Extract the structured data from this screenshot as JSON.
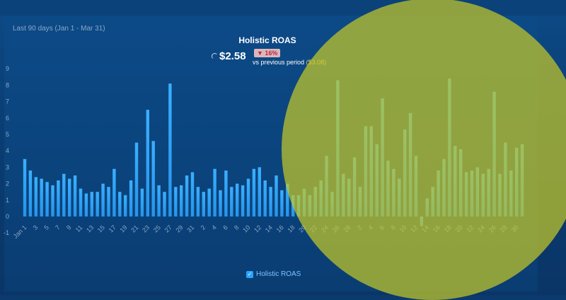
{
  "header": {
    "period": "Last 90 days (Jan 1 - Mar 31)",
    "title": "Holistic ROAS",
    "value": "$2.58",
    "change": "▼ 16%",
    "compare_text": "vs previous period",
    "previous_value": "($3.08)"
  },
  "legend": {
    "label": "Holistic ROAS",
    "checked": true
  },
  "colors": {
    "bar": "#2aa3ff",
    "negative_badge": "#c0263a",
    "previous": "#f2c94c",
    "highlight": "#c3c828"
  },
  "chart_data": {
    "type": "bar",
    "title": "Holistic ROAS",
    "ylim": [
      -1,
      9
    ],
    "yticks": [
      9,
      8,
      7,
      6,
      5,
      4,
      3,
      2,
      1,
      0,
      -1
    ],
    "grid": false,
    "legend": "bottom",
    "xtick_labels": [
      "Jan 1",
      "3",
      "5",
      "7",
      "9",
      "11",
      "13",
      "15",
      "17",
      "19",
      "21",
      "23",
      "25",
      "27",
      "29",
      "31",
      "2",
      "4",
      "6",
      "8",
      "10",
      "12",
      "14",
      "16",
      "18",
      "20",
      "22",
      "24",
      "26",
      "28",
      "2",
      "4",
      "6",
      "8",
      "10",
      "12",
      "14",
      "16",
      "18",
      "20",
      "22",
      "24",
      "26",
      "28",
      "30"
    ],
    "series": [
      {
        "name": "Holistic ROAS",
        "values": [
          3.5,
          2.8,
          2.4,
          2.3,
          2.1,
          1.9,
          2.2,
          2.6,
          2.3,
          2.5,
          1.7,
          1.4,
          1.5,
          1.5,
          2.0,
          1.8,
          2.9,
          1.5,
          1.3,
          2.2,
          4.5,
          1.7,
          6.5,
          4.6,
          1.9,
          1.5,
          8.1,
          1.8,
          1.9,
          2.5,
          2.7,
          1.8,
          1.5,
          1.7,
          2.9,
          1.6,
          2.8,
          1.8,
          2.0,
          1.9,
          2.3,
          2.9,
          3.0,
          2.2,
          1.8,
          2.5,
          1.6,
          2.0,
          1.3,
          1.3,
          1.7,
          1.3,
          1.8,
          2.2,
          3.7,
          1.5,
          8.3,
          2.6,
          2.3,
          3.6,
          1.8,
          5.5,
          5.5,
          4.4,
          7.2,
          3.4,
          2.9,
          2.3,
          5.3,
          6.3,
          3.7,
          -0.6,
          1.1,
          1.8,
          2.8,
          3.5,
          8.4,
          4.3,
          4.1,
          2.7,
          2.8,
          3.0,
          2.6,
          2.9,
          7.6,
          2.6,
          4.5,
          2.8,
          4.2,
          4.4
        ]
      }
    ]
  }
}
